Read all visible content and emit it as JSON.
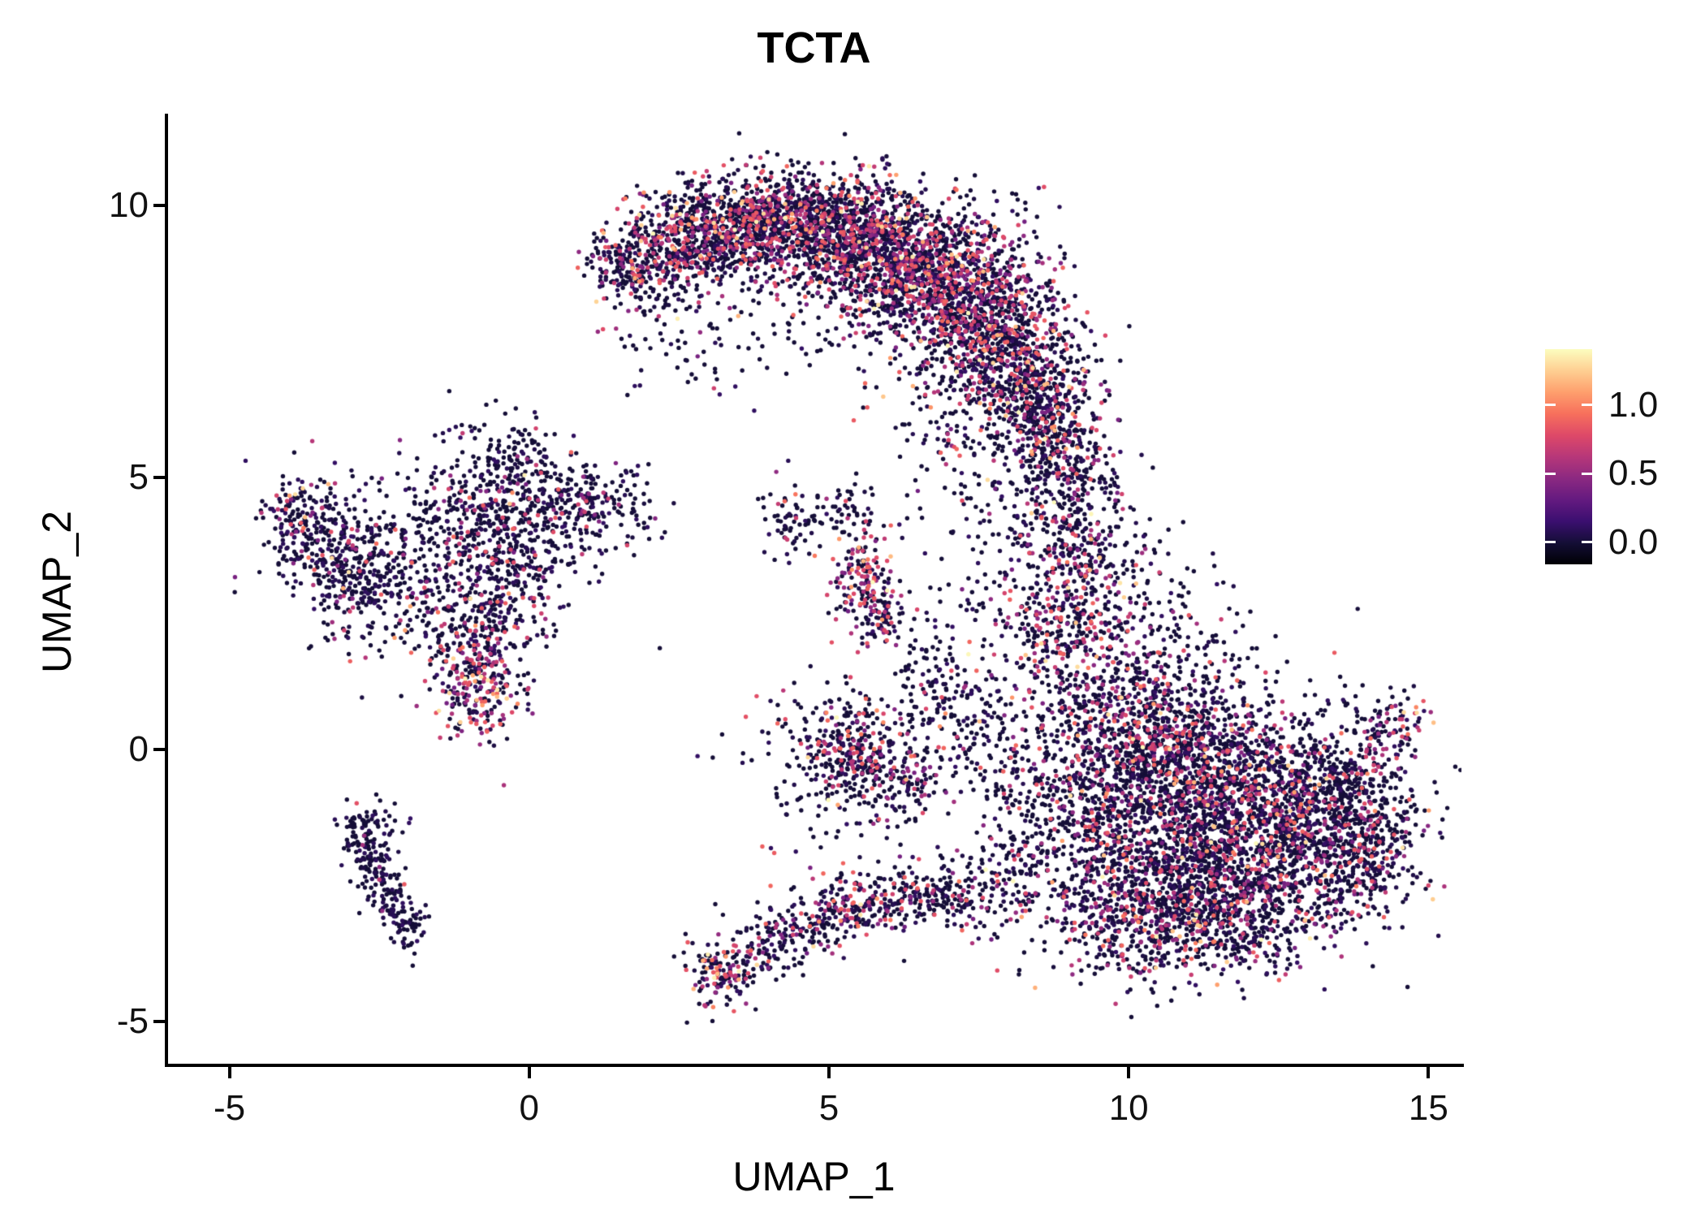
{
  "chart_data": {
    "type": "scatter",
    "title": "TCTA",
    "xlabel": "UMAP_1",
    "ylabel": "UMAP_2",
    "grid": false,
    "legend_position": "right",
    "x_axis": {
      "range": [
        -6.05,
        15.55
      ],
      "ticks": [
        {
          "value": -5,
          "label": "-5"
        },
        {
          "value": 0,
          "label": "0"
        },
        {
          "value": 5,
          "label": "5"
        },
        {
          "value": 10,
          "label": "10"
        },
        {
          "value": 15,
          "label": "15"
        }
      ]
    },
    "y_axis": {
      "range": [
        -5.78,
        11.69
      ],
      "ticks": [
        {
          "value": 10,
          "label": "10"
        },
        {
          "value": 5,
          "label": "5"
        },
        {
          "value": 0,
          "label": "0"
        },
        {
          "value": -5,
          "label": "-5"
        }
      ]
    },
    "colorbar": {
      "min": -0.16,
      "max": 1.405,
      "ticks": [
        {
          "value": 1.0,
          "label": "1.0"
        },
        {
          "value": 0.5,
          "label": "0.5"
        },
        {
          "value": 0.0,
          "label": "0.0"
        }
      ],
      "stops": [
        "#000004",
        "#140e36",
        "#3b0f70",
        "#641a80",
        "#8c2981",
        "#b73779",
        "#de4968",
        "#f7705c",
        "#fe9f6d",
        "#fecf92",
        "#fcfdbf"
      ]
    },
    "points": {
      "seed": 1337,
      "radius": 2.7,
      "zero_fraction_of_low": 0.65,
      "cluster_fields": [
        "x",
        "y",
        "n",
        "sx",
        "sy",
        "p_mid",
        "p_high"
      ],
      "clusters": [
        [
          1.6,
          8.9,
          150,
          0.35,
          0.35,
          0.22,
          0.02
        ],
        [
          2.4,
          9.3,
          350,
          0.5,
          0.45,
          0.25,
          0.03
        ],
        [
          3.3,
          9.6,
          500,
          0.6,
          0.45,
          0.25,
          0.03
        ],
        [
          4.4,
          9.7,
          650,
          0.7,
          0.5,
          0.22,
          0.03
        ],
        [
          5.5,
          9.4,
          750,
          0.7,
          0.55,
          0.22,
          0.03
        ],
        [
          6.5,
          8.8,
          850,
          0.75,
          0.65,
          0.25,
          0.03
        ],
        [
          7.4,
          8.1,
          750,
          0.65,
          0.75,
          0.25,
          0.03
        ],
        [
          8.1,
          7.1,
          550,
          0.55,
          0.75,
          0.22,
          0.02
        ],
        [
          8.6,
          6.1,
          350,
          0.45,
          0.6,
          0.2,
          0.02
        ],
        [
          4.6,
          8.2,
          120,
          1.1,
          0.7,
          0.15,
          0.01
        ],
        [
          2.0,
          8.3,
          60,
          0.5,
          0.5,
          0.1,
          0.0
        ],
        [
          8.9,
          5.0,
          220,
          0.45,
          0.7,
          0.2,
          0.02
        ],
        [
          9.2,
          3.6,
          280,
          0.55,
          0.8,
          0.25,
          0.03
        ],
        [
          8.9,
          2.2,
          280,
          0.6,
          0.7,
          0.3,
          0.03
        ],
        [
          8.0,
          3.5,
          80,
          0.6,
          0.9,
          0.1,
          0.0
        ],
        [
          10.3,
          0.2,
          700,
          0.9,
          0.7,
          0.2,
          0.02
        ],
        [
          11.5,
          -0.6,
          1000,
          1.1,
          0.8,
          0.18,
          0.02
        ],
        [
          12.4,
          -1.8,
          900,
          1.0,
          0.8,
          0.18,
          0.02
        ],
        [
          11.0,
          -2.4,
          750,
          1.0,
          0.7,
          0.2,
          0.02
        ],
        [
          13.4,
          -0.7,
          450,
          0.7,
          0.7,
          0.15,
          0.02
        ],
        [
          14.0,
          -1.8,
          260,
          0.45,
          0.7,
          0.15,
          0.02
        ],
        [
          9.6,
          -1.4,
          350,
          0.6,
          0.8,
          0.2,
          0.02
        ],
        [
          10.2,
          -3.4,
          300,
          0.8,
          0.45,
          0.2,
          0.03
        ],
        [
          11.8,
          -3.2,
          300,
          0.8,
          0.5,
          0.18,
          0.02
        ],
        [
          14.4,
          0.3,
          90,
          0.3,
          0.4,
          0.3,
          0.05
        ],
        [
          -3.6,
          4.1,
          160,
          0.4,
          0.45,
          0.12,
          0.02
        ],
        [
          -2.9,
          3.3,
          260,
          0.45,
          0.55,
          0.12,
          0.02
        ],
        [
          -2.0,
          2.9,
          160,
          0.6,
          0.6,
          0.1,
          0.01
        ],
        [
          -0.6,
          4.4,
          350,
          0.85,
          0.55,
          0.12,
          0.01
        ],
        [
          -0.4,
          3.3,
          220,
          0.6,
          0.55,
          0.15,
          0.01
        ],
        [
          -0.8,
          2.2,
          200,
          0.5,
          0.5,
          0.25,
          0.02
        ],
        [
          -0.9,
          1.1,
          220,
          0.35,
          0.5,
          0.45,
          0.08
        ],
        [
          0.6,
          4.6,
          160,
          0.7,
          0.4,
          0.1,
          0.01
        ],
        [
          -0.3,
          5.4,
          90,
          0.5,
          0.4,
          0.08,
          0.0
        ],
        [
          1.3,
          4.5,
          70,
          0.45,
          0.45,
          0.1,
          0.0
        ],
        [
          -1.5,
          3.5,
          120,
          1.3,
          1.1,
          0.08,
          0.0
        ],
        [
          -4.0,
          4.4,
          60,
          0.25,
          0.35,
          0.15,
          0.05
        ],
        [
          -2.8,
          -1.6,
          70,
          0.18,
          0.3,
          0.02,
          0.0
        ],
        [
          -2.6,
          -2.2,
          70,
          0.16,
          0.3,
          0.02,
          0.0
        ],
        [
          -2.3,
          -2.8,
          60,
          0.16,
          0.3,
          0.02,
          0.0
        ],
        [
          -2.0,
          -3.3,
          50,
          0.15,
          0.28,
          0.02,
          0.0
        ],
        [
          -2.55,
          -1.3,
          25,
          0.3,
          0.15,
          0.0,
          0.0
        ],
        [
          4.4,
          4.2,
          70,
          0.3,
          0.3,
          0.1,
          0.02
        ],
        [
          5.3,
          4.4,
          45,
          0.25,
          0.25,
          0.1,
          0.0
        ],
        [
          5.6,
          3.1,
          160,
          0.28,
          0.5,
          0.4,
          0.04
        ],
        [
          5.9,
          2.4,
          60,
          0.25,
          0.3,
          0.3,
          0.02
        ],
        [
          5.5,
          0.0,
          320,
          0.5,
          0.5,
          0.25,
          0.03
        ],
        [
          6.2,
          -0.6,
          120,
          0.4,
          0.35,
          0.2,
          0.02
        ],
        [
          6.8,
          1.4,
          110,
          0.35,
          0.7,
          0.15,
          0.01
        ],
        [
          7.5,
          0.3,
          130,
          0.55,
          0.65,
          0.12,
          0.01
        ],
        [
          8.3,
          -0.6,
          120,
          0.6,
          0.6,
          0.1,
          0.01
        ],
        [
          3.2,
          -4.1,
          140,
          0.28,
          0.35,
          0.35,
          0.08
        ],
        [
          3.9,
          -3.6,
          90,
          0.35,
          0.3,
          0.15,
          0.02
        ],
        [
          4.7,
          -3.2,
          110,
          0.4,
          0.3,
          0.2,
          0.02
        ],
        [
          5.5,
          -2.9,
          140,
          0.4,
          0.35,
          0.3,
          0.03
        ],
        [
          6.3,
          -2.7,
          110,
          0.4,
          0.3,
          0.2,
          0.02
        ],
        [
          7.1,
          -2.8,
          100,
          0.45,
          0.35,
          0.15,
          0.02
        ],
        [
          7.9,
          -2.5,
          90,
          0.5,
          0.45,
          0.12,
          0.01
        ],
        [
          8.7,
          -1.9,
          120,
          0.7,
          0.7,
          0.1,
          0.01
        ],
        [
          2.7,
          7.6,
          35,
          0.8,
          0.7,
          0.08,
          0.0
        ],
        [
          6.9,
          5.9,
          60,
          0.6,
          0.5,
          0.15,
          0.02
        ],
        [
          7.0,
          4.6,
          40,
          0.6,
          0.6,
          0.1,
          0.0
        ],
        [
          9.8,
          1.3,
          150,
          0.6,
          0.6,
          0.25,
          0.03
        ],
        [
          10.5,
          2.5,
          90,
          0.6,
          0.7,
          0.15,
          0.02
        ],
        [
          11.2,
          1.5,
          60,
          0.7,
          0.6,
          0.1,
          0.0
        ],
        [
          4.9,
          -0.9,
          60,
          0.5,
          0.6,
          0.1,
          0.0
        ],
        [
          4.4,
          0.3,
          40,
          0.5,
          0.5,
          0.1,
          0.0
        ]
      ]
    }
  }
}
